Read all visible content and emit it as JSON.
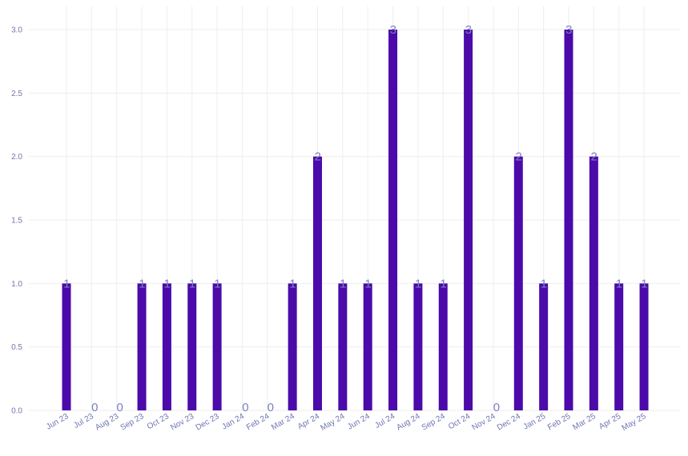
{
  "chart_data": {
    "type": "bar",
    "categories": [
      "Jun 23",
      "Jul 23",
      "Aug 23",
      "Sep 23",
      "Oct 23",
      "Nov 23",
      "Dec 23",
      "Jan 24",
      "Feb 24",
      "Mar 24",
      "Apr 24",
      "May 24",
      "Jun 24",
      "Jul 24",
      "Aug 24",
      "Sep 24",
      "Oct 24",
      "Nov 24",
      "Dec 24",
      "Jan 25",
      "Feb 25",
      "Mar 25",
      "Apr 25",
      "May 25"
    ],
    "values": [
      1,
      0,
      0,
      1,
      1,
      1,
      1,
      0,
      0,
      1,
      2,
      1,
      1,
      3,
      1,
      1,
      3,
      0,
      2,
      1,
      3,
      2,
      1,
      1
    ],
    "title": "",
    "xlabel": "",
    "ylabel": "",
    "ylim": [
      0,
      3.0
    ],
    "yticks": [
      "0.0",
      "0.5",
      "1.0",
      "1.5",
      "2.0",
      "2.5",
      "3.0"
    ],
    "grid": true,
    "legend": "none",
    "bar_color": "#4b0aa9",
    "tick_color": "#6f75b3",
    "label_color": "#7b80c0",
    "grid_color": "#eeeeee"
  }
}
